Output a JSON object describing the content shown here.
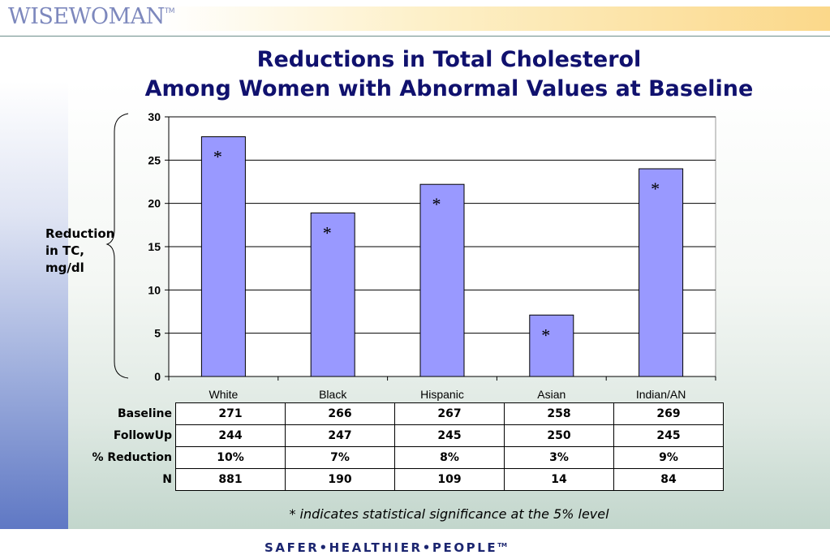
{
  "header": {
    "logo_text": "WISEWOMAN",
    "logo_tm": "TM"
  },
  "title_line1": "Reductions in Total Cholesterol",
  "title_line2": "Among Women with Abnormal Values at Baseline",
  "footer": {
    "tagline": "SAFER•HEALTHIER•PEOPLE",
    "tagline_tm": "TM"
  },
  "chart_data": {
    "type": "bar",
    "categories": [
      "White",
      "Black",
      "Hispanic",
      "Asian",
      "Indian/AN"
    ],
    "values": [
      27.7,
      18.9,
      22.2,
      7.1,
      24.0
    ],
    "significant": [
      true,
      true,
      true,
      true,
      true
    ],
    "significance_marker": "*",
    "ylabel_lines": [
      "Reduction",
      "in TC,",
      "mg/dl"
    ],
    "ylim": [
      0,
      30
    ],
    "yticks": [
      0,
      5,
      10,
      15,
      20,
      25,
      30
    ],
    "grid": true,
    "bar_color": "#9999ff"
  },
  "table": {
    "rows": [
      {
        "label": "Baseline",
        "values": [
          "271",
          "266",
          "267",
          "258",
          "269"
        ]
      },
      {
        "label": "FollowUp",
        "values": [
          "244",
          "247",
          "245",
          "250",
          "245"
        ]
      },
      {
        "label": "% Reduction",
        "values": [
          "10%",
          "7%",
          "8%",
          "3%",
          "9%"
        ]
      },
      {
        "label": "N",
        "values": [
          "881",
          "190",
          "109",
          "14",
          "84"
        ]
      }
    ]
  },
  "footnote": "* indicates statistical significance at the 5% level"
}
